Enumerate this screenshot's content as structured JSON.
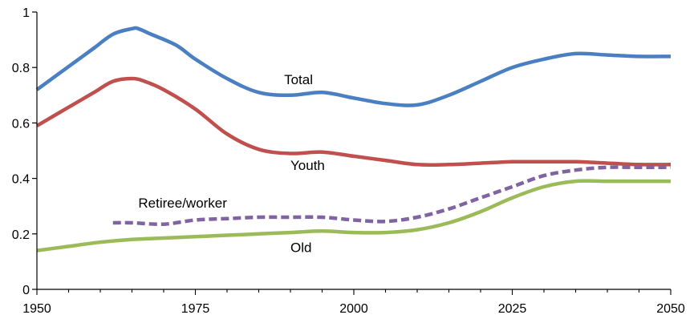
{
  "chart_data": {
    "type": "line",
    "title": "",
    "xlabel": "",
    "ylabel": "",
    "xlim": [
      1950,
      2050
    ],
    "ylim": [
      0,
      1
    ],
    "x_ticks": [
      "1950",
      "1975",
      "2000",
      "2025",
      "2050"
    ],
    "y_ticks": [
      "0",
      "0.2",
      "0.4",
      "0.6",
      "0.8",
      "1"
    ],
    "grid": false,
    "legend": "none",
    "series": [
      {
        "name": "Total",
        "color": "#4a7fc1",
        "style": "solid",
        "label_at": [
          1989,
          0.74
        ],
        "points": [
          [
            1950,
            0.72
          ],
          [
            1953,
            0.77
          ],
          [
            1956,
            0.82
          ],
          [
            1959,
            0.87
          ],
          [
            1962,
            0.92
          ],
          [
            1965,
            0.94
          ],
          [
            1966,
            0.94
          ],
          [
            1968,
            0.92
          ],
          [
            1972,
            0.88
          ],
          [
            1975,
            0.83
          ],
          [
            1980,
            0.76
          ],
          [
            1985,
            0.71
          ],
          [
            1990,
            0.7
          ],
          [
            1995,
            0.71
          ],
          [
            2000,
            0.69
          ],
          [
            2005,
            0.67
          ],
          [
            2010,
            0.665
          ],
          [
            2015,
            0.7
          ],
          [
            2020,
            0.75
          ],
          [
            2025,
            0.8
          ],
          [
            2030,
            0.83
          ],
          [
            2035,
            0.85
          ],
          [
            2040,
            0.845
          ],
          [
            2045,
            0.84
          ],
          [
            2050,
            0.84
          ]
        ]
      },
      {
        "name": "Youth",
        "color": "#c0504d",
        "style": "solid",
        "label_at": [
          1990,
          0.43
        ],
        "points": [
          [
            1950,
            0.59
          ],
          [
            1953,
            0.63
          ],
          [
            1956,
            0.67
          ],
          [
            1959,
            0.71
          ],
          [
            1962,
            0.75
          ],
          [
            1965,
            0.76
          ],
          [
            1967,
            0.75
          ],
          [
            1970,
            0.72
          ],
          [
            1975,
            0.65
          ],
          [
            1980,
            0.56
          ],
          [
            1985,
            0.505
          ],
          [
            1990,
            0.49
          ],
          [
            1995,
            0.495
          ],
          [
            2000,
            0.48
          ],
          [
            2005,
            0.465
          ],
          [
            2010,
            0.45
          ],
          [
            2015,
            0.45
          ],
          [
            2020,
            0.455
          ],
          [
            2025,
            0.46
          ],
          [
            2030,
            0.46
          ],
          [
            2035,
            0.46
          ],
          [
            2040,
            0.455
          ],
          [
            2045,
            0.45
          ],
          [
            2050,
            0.45
          ]
        ]
      },
      {
        "name": "Retiree/worker",
        "color": "#8064a2",
        "style": "dashed",
        "label_at": [
          1966,
          0.295
        ],
        "points": [
          [
            1962,
            0.24
          ],
          [
            1965,
            0.24
          ],
          [
            1970,
            0.235
          ],
          [
            1975,
            0.25
          ],
          [
            1980,
            0.255
          ],
          [
            1985,
            0.26
          ],
          [
            1990,
            0.26
          ],
          [
            1995,
            0.26
          ],
          [
            2000,
            0.25
          ],
          [
            2005,
            0.245
          ],
          [
            2010,
            0.26
          ],
          [
            2015,
            0.29
          ],
          [
            2020,
            0.33
          ],
          [
            2025,
            0.37
          ],
          [
            2030,
            0.41
          ],
          [
            2035,
            0.43
          ],
          [
            2040,
            0.44
          ],
          [
            2045,
            0.44
          ],
          [
            2050,
            0.44
          ]
        ]
      },
      {
        "name": "Old",
        "color": "#9bbb59",
        "style": "solid",
        "label_at": [
          1990,
          0.135
        ],
        "points": [
          [
            1950,
            0.14
          ],
          [
            1955,
            0.155
          ],
          [
            1960,
            0.17
          ],
          [
            1965,
            0.18
          ],
          [
            1970,
            0.185
          ],
          [
            1975,
            0.19
          ],
          [
            1980,
            0.195
          ],
          [
            1985,
            0.2
          ],
          [
            1990,
            0.205
          ],
          [
            1995,
            0.21
          ],
          [
            2000,
            0.205
          ],
          [
            2005,
            0.205
          ],
          [
            2010,
            0.215
          ],
          [
            2015,
            0.24
          ],
          [
            2020,
            0.28
          ],
          [
            2025,
            0.33
          ],
          [
            2030,
            0.37
          ],
          [
            2035,
            0.39
          ],
          [
            2040,
            0.39
          ],
          [
            2045,
            0.39
          ],
          [
            2050,
            0.39
          ]
        ]
      }
    ]
  }
}
